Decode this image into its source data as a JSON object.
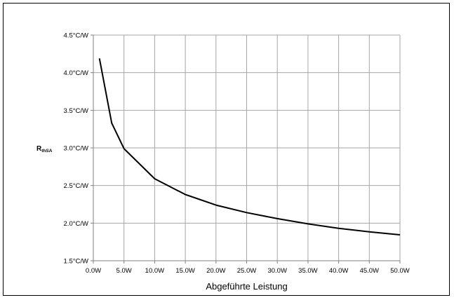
{
  "chart_data": {
    "type": "line",
    "title": "",
    "xlabel": "Abgeführte Leistung",
    "ylabel": {
      "main": "R",
      "subscript": "thSA"
    },
    "xlim": [
      0,
      50
    ],
    "ylim": [
      1.5,
      4.5
    ],
    "grid": true,
    "legend": "none",
    "x_ticks": [
      "0.0W",
      "5.0W",
      "10.0W",
      "15.0W",
      "20.0W",
      "25.0W",
      "30.0W",
      "35.0W",
      "40.0W",
      "45.0W",
      "50.0W"
    ],
    "x_tick_values": [
      0,
      5,
      10,
      15,
      20,
      25,
      30,
      35,
      40,
      45,
      50
    ],
    "y_ticks": [
      "1.5°C/W",
      "2.0°C/W",
      "2.5°C/W",
      "3.0°C/W",
      "3.5°C/W",
      "4.0°C/W",
      "4.5°C/W"
    ],
    "y_tick_values": [
      1.5,
      2.0,
      2.5,
      3.0,
      3.5,
      4.0,
      4.5
    ],
    "series": [
      {
        "color": "#000000",
        "x": [
          1,
          3,
          5,
          10,
          15,
          20,
          25,
          30,
          35,
          40,
          45,
          50
        ],
        "y": [
          4.19,
          3.33,
          2.99,
          2.59,
          2.38,
          2.24,
          2.14,
          2.06,
          1.99,
          1.93,
          1.885,
          1.845
        ]
      }
    ]
  }
}
